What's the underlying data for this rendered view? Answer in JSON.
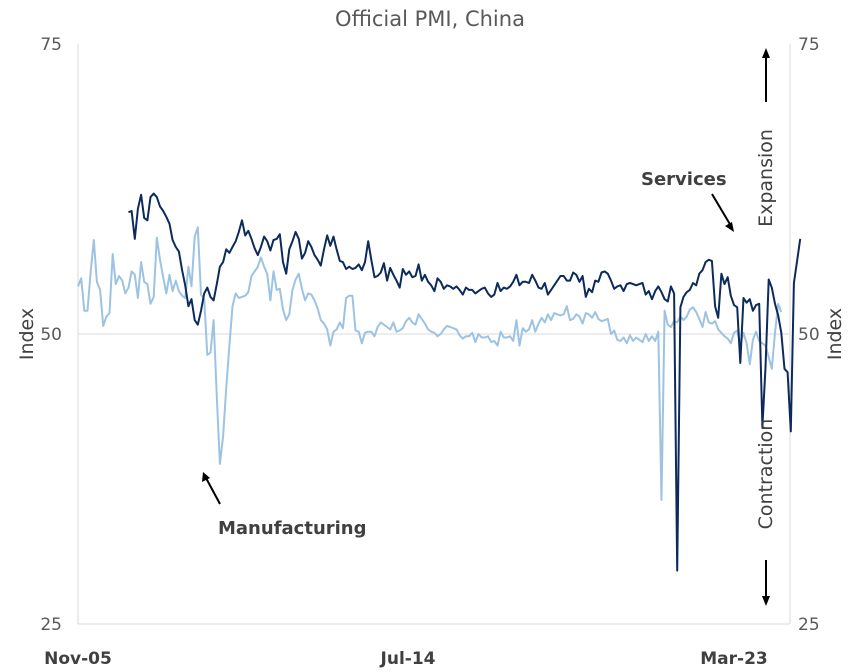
{
  "chart_data": {
    "type": "line",
    "title": "Official PMI, China",
    "ylabel_left": "Index",
    "ylabel_right": "Index",
    "ylim": [
      25,
      75
    ],
    "yticks": [
      25,
      50,
      75
    ],
    "x_start": "Nov-05",
    "x_end": "Mar-23",
    "xtick_labels": [
      "Nov-05",
      "Jul-14",
      "Mar-23"
    ],
    "reference_line": 50,
    "grid": false,
    "annotations": {
      "services": "Services",
      "manufacturing": "Manufacturing",
      "expansion": "Expansion",
      "contraction": "Contraction"
    },
    "series": [
      {
        "name": "Services",
        "color": "#0d2a5c",
        "start_month_index": 16,
        "values": [
          60.5,
          60.6,
          58.2,
          60.8,
          62.0,
          60.0,
          59.8,
          61.8,
          62.1,
          61.8,
          61.0,
          60.6,
          60.1,
          59.5,
          58.1,
          57.5,
          57.1,
          55.5,
          54.2,
          52.4,
          53.0,
          51.2,
          50.8,
          52.0,
          53.5,
          54.0,
          53.2,
          52.9,
          54.3,
          55.8,
          56.2,
          57.3,
          57.0,
          57.5,
          58.0,
          58.8,
          59.8,
          58.5,
          58.9,
          58.2,
          57.4,
          56.8,
          57.5,
          58.4,
          58.0,
          57.2,
          58.1,
          58.2,
          58.6,
          56.2,
          55.2,
          57.3,
          58.0,
          58.8,
          58.2,
          56.5,
          57.0,
          58.0,
          57.5,
          56.8,
          56.4,
          55.9,
          57.3,
          58.5,
          57.6,
          58.4,
          57.3,
          56.3,
          56.2,
          55.6,
          55.8,
          55.6,
          55.7,
          56.0,
          55.5,
          56.2,
          58.0,
          56.4,
          54.9,
          55.0,
          55.3,
          56.1,
          54.6,
          55.7,
          55.1,
          54.6,
          54.0,
          55.6,
          55.1,
          55.4,
          54.9,
          55.0,
          56.0,
          54.6,
          55.1,
          54.5,
          54.2,
          53.7,
          54.8,
          54.5,
          53.9,
          54.2,
          54.1,
          53.9,
          54.1,
          53.8,
          53.4,
          54.0,
          53.8,
          53.8,
          53.5,
          53.7,
          53.9,
          54.0,
          53.5,
          53.2,
          53.4,
          54.4,
          53.7,
          54.0,
          53.9,
          54.1,
          54.5,
          55.1,
          54.2,
          54.5,
          54.5,
          54.4,
          55.1,
          54.6,
          54.0,
          53.9,
          54.4,
          53.4,
          53.8,
          54.2,
          54.6,
          55.0,
          55.0,
          54.6,
          54.6,
          55.3,
          55.1,
          54.5,
          55.0,
          53.2,
          53.9,
          53.6,
          54.6,
          54.5,
          55.3,
          55.4,
          55.2,
          54.6,
          53.9,
          54.1,
          54.2,
          53.7,
          54.3,
          54.4,
          54.3,
          54.2,
          54.3,
          54.4,
          53.4,
          53.7,
          53.0,
          53.7,
          54.1,
          53.6,
          53.0,
          52.8,
          54.1,
          53.5,
          29.6,
          52.3,
          53.2,
          53.6,
          53.8,
          54.4,
          54.2,
          55.2,
          55.5,
          56.2,
          56.4,
          56.3,
          52.4,
          51.4,
          55.2,
          54.3,
          54.9,
          53.3,
          52.5,
          52.3,
          47.5,
          53.1,
          52.7,
          53.0,
          52.0,
          52.5,
          52.6,
          42.0,
          47.1,
          54.7,
          54.0,
          52.6,
          51.6,
          50.1,
          47.0,
          46.7,
          41.6,
          54.4,
          56.3,
          58.2
        ]
      },
      {
        "name": "Manufacturing",
        "color": "#9dc3e3",
        "start_month_index": 0,
        "values": [
          54.1,
          54.8,
          52.0,
          52.0,
          55.3,
          58.1,
          54.5,
          53.8,
          50.7,
          51.5,
          51.8,
          56.9,
          54.3,
          55.0,
          54.6,
          53.5,
          54.0,
          55.4,
          55.1,
          53.1,
          56.2,
          54.5,
          54.3,
          52.6,
          53.2,
          58.3,
          56.4,
          54.9,
          53.5,
          55.1,
          53.7,
          54.6,
          53.7,
          53.3,
          53.1,
          55.8,
          54.1,
          58.4,
          59.2,
          53.4,
          53.0,
          48.2,
          48.4,
          51.2,
          44.6,
          38.8,
          41.2,
          45.3,
          49.0,
          52.4,
          53.5,
          53.1,
          53.2,
          53.3,
          53.6,
          55.0,
          55.4,
          55.8,
          56.6,
          55.8,
          55.2,
          52.9,
          55.4,
          53.8,
          53.9,
          52.1,
          51.2,
          51.7,
          53.8,
          54.7,
          55.2,
          53.9,
          52.9,
          53.5,
          53.4,
          52.9,
          52.2,
          51.2,
          50.9,
          50.4,
          49.0,
          50.2,
          50.4,
          51.0,
          50.5,
          53.1,
          53.3,
          53.3,
          50.3,
          50.2,
          49.2,
          50.1,
          50.2,
          50.2,
          49.8,
          50.6,
          51.0,
          50.8,
          50.6,
          50.4,
          51.0,
          50.2,
          50.3,
          50.5,
          51.1,
          51.4,
          51.0,
          50.8,
          51.7,
          51.3,
          50.9,
          50.4,
          50.2,
          50.1,
          49.8,
          50.0,
          50.4,
          50.7,
          50.6,
          50.5,
          50.4,
          49.9,
          49.6,
          49.8,
          49.8,
          50.1,
          49.3,
          50.0,
          49.7,
          49.7,
          49.8,
          49.3,
          49.4,
          49.0,
          50.2,
          49.7,
          49.7,
          49.8,
          49.4,
          51.2,
          49.0,
          50.5,
          50.2,
          50.4,
          51.2,
          50.2,
          50.9,
          51.4,
          51.0,
          51.7,
          51.2,
          51.8,
          51.7,
          51.6,
          51.7,
          52.4,
          51.2,
          51.3,
          51.7,
          51.5,
          50.9,
          51.8,
          51.7,
          51.4,
          51.9,
          51.3,
          51.1,
          51.2,
          51.3,
          50.0,
          50.3,
          49.5,
          49.4,
          49.7,
          49.2,
          49.9,
          49.4,
          49.7,
          49.5,
          49.3,
          50.0,
          49.4,
          49.8,
          49.4,
          50.2,
          35.7,
          52.0,
          50.8,
          50.6,
          51.1,
          51.0,
          51.5,
          51.2,
          51.5,
          52.1,
          52.3,
          51.9,
          51.3,
          50.6,
          51.9,
          51.0,
          50.9,
          51.1,
          50.4,
          50.1,
          49.8,
          49.6,
          49.2,
          50.1,
          50.3,
          49.1,
          50.1,
          49.2,
          47.4,
          49.5,
          50.2,
          49.4,
          49.2,
          49.0,
          48.0,
          47.0,
          50.1,
          52.6,
          51.9
        ]
      }
    ]
  }
}
